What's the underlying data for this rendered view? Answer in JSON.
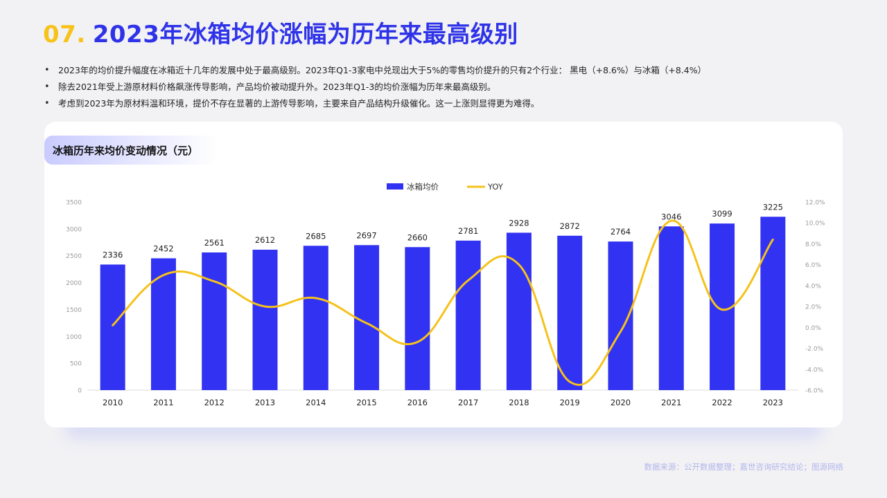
{
  "header": {
    "number": "07.",
    "title": "2023年冰箱均价涨幅为历年来最高级别"
  },
  "bullets": [
    "2023年的均价提升幅度在冰箱近十几年的发展中处于最高级别。2023年Q1-3家电中兑现出大于5%的零售均价提升的只有2个行业： 黑电（+8.6%）与冰箱（+8.4%）",
    "除去2021年受上游原材料价格飙涨传导影响，产品均价被动提升外。2023年Q1-3的均价涨幅为历年来最高级别。",
    "考虑到2023年为原材料温和环境，提价不存在显著的上游传导影响，主要来自产品结构升级催化。这一上涨则显得更为难得。"
  ],
  "card": {
    "tag": "冰箱历年来均价变动情况（元）"
  },
  "chart_data": {
    "type": "bar+line",
    "categories": [
      "2010",
      "2011",
      "2012",
      "2013",
      "2014",
      "2015",
      "2016",
      "2017",
      "2018",
      "2019",
      "2020",
      "2021",
      "2022",
      "2023"
    ],
    "series": [
      {
        "name": "冰箱均价",
        "type": "bar",
        "axis": "left",
        "color": "#3232f2",
        "values": [
          2336,
          2452,
          2561,
          2612,
          2685,
          2697,
          2660,
          2781,
          2928,
          2872,
          2764,
          3046,
          3099,
          3225
        ]
      },
      {
        "name": "YOY",
        "type": "line",
        "axis": "right",
        "color": "#f5c21b",
        "values": [
          0.2,
          5.0,
          4.4,
          2.0,
          2.8,
          0.4,
          -1.4,
          4.5,
          6.0,
          -5.2,
          -0.4,
          10.2,
          1.7,
          8.4
        ]
      }
    ],
    "left_ticks": [
      "0",
      "500",
      "1000",
      "1500",
      "2000",
      "2500",
      "3000",
      "3500"
    ],
    "right_ticks": [
      "-6.0%",
      "-4.0%",
      "-2.0%",
      "0.0%",
      "2.0%",
      "4.0%",
      "6.0%",
      "8.0%",
      "10.0%",
      "12.0%"
    ],
    "ylim_left": [
      0,
      3500
    ],
    "ylim_right": [
      -6,
      12
    ],
    "legend_position": "top-center",
    "grid": false
  },
  "footer": {
    "source": "数据来源：公开数据整理；嘉世咨询研究结论；图源网络"
  }
}
